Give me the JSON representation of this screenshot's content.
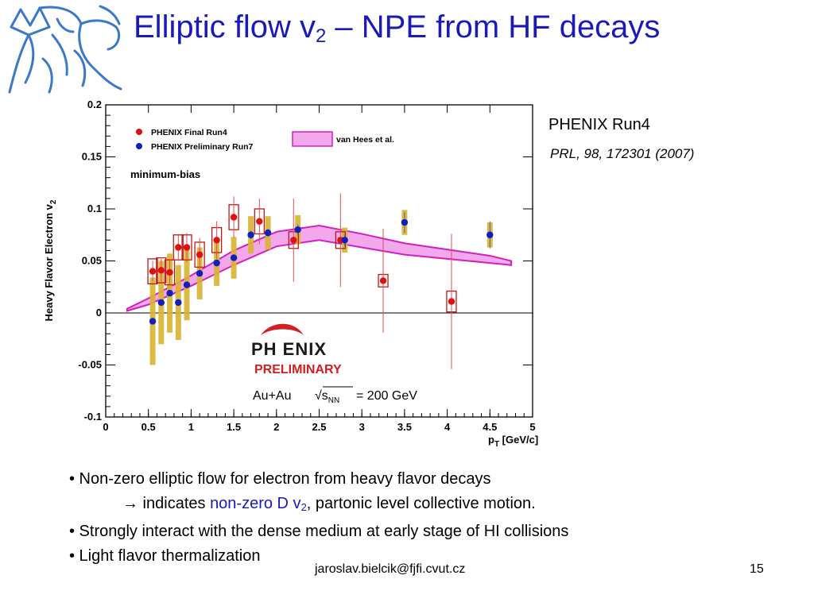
{
  "slide": {
    "title": {
      "main": "Elliptic flow v",
      "sub": "2",
      "rest": " – NPE from HF decays"
    },
    "reference": {
      "experiment": "PHENIX Run4",
      "citation": "PRL, 98, 172301 (2007)"
    },
    "bullets": [
      {
        "text": "• Non-zero elliptic flow for electron from heavy flavor decays"
      },
      {
        "prefix": "→ indicates ",
        "highlight": "non-zero D v",
        "highlight_sub": "2",
        "suffix": ", partonic level collective motion."
      },
      {
        "text": "• Strongly interact with the dense medium at early stage of HI collisions"
      },
      {
        "text": "• Light flavor thermalization"
      }
    ],
    "footer": {
      "email": "jaroslav.bielcik@fjfi.cvut.cz",
      "page": "15"
    }
  },
  "colors": {
    "title": "#1a1ab8",
    "final_marker": "#e01010",
    "prelim_marker": "#1020c0",
    "band": "#f4a8ec",
    "band_edge": "#d020c0",
    "syst": "#d8b430"
  },
  "chart_data": {
    "type": "scatter",
    "xlabel": "p",
    "xlabel_sub": "T",
    "xlabel_unit": " [GeV/c]",
    "ylabel": "Heavy Flavor Electron v",
    "ylabel_sub": "2",
    "xlim": [
      0,
      5
    ],
    "ylim": [
      -0.1,
      0.2
    ],
    "xticks": [
      "0",
      "0.5",
      "1",
      "1.5",
      "2",
      "2.5",
      "3",
      "3.5",
      "4",
      "4.5",
      "5"
    ],
    "yticks": [
      "-0.1",
      "-0.05",
      "0",
      "0.05",
      "0.1",
      "0.15",
      "0.2"
    ],
    "grid": false,
    "legend_position": "top-left",
    "annotations": {
      "centrality": "minimum-bias",
      "logo_word": "PH ENIX",
      "logo_status": "PRELIMINARY",
      "system": "Au+Au",
      "energy": "= 200 GeV"
    },
    "series": [
      {
        "name": "PHENIX Final Run4",
        "x": [
          0.55,
          0.65,
          0.75,
          0.85,
          0.95,
          1.1,
          1.3,
          1.5,
          1.8,
          2.2,
          2.75,
          3.25,
          4.05
        ],
        "y": [
          0.04,
          0.041,
          0.039,
          0.063,
          0.063,
          0.056,
          0.07,
          0.092,
          0.088,
          0.07,
          0.07,
          0.031,
          0.011
        ],
        "err": [
          0.01,
          0.011,
          0.012,
          0.013,
          0.014,
          0.016,
          0.018,
          0.02,
          0.022,
          0.04,
          0.045,
          0.05,
          0.065
        ],
        "syst": [
          0.012,
          0.012,
          0.012,
          0.012,
          0.012,
          0.012,
          0.012,
          0.012,
          0.012,
          0.008,
          0.008,
          0.006,
          0.01
        ]
      },
      {
        "name": "PHENIX Preliminary Run7",
        "x": [
          0.55,
          0.65,
          0.75,
          0.85,
          0.95,
          1.1,
          1.3,
          1.5,
          1.7,
          1.9,
          2.25,
          2.8,
          3.5,
          4.5
        ],
        "y": [
          -0.008,
          0.01,
          0.019,
          0.01,
          0.027,
          0.038,
          0.048,
          0.053,
          0.075,
          0.077,
          0.08,
          0.07,
          0.087,
          0.075
        ],
        "err": [
          0.003,
          0.003,
          0.003,
          0.003,
          0.003,
          0.003,
          0.003,
          0.003,
          0.004,
          0.004,
          0.005,
          0.006,
          0.01,
          0.013
        ],
        "syst": [
          0.042,
          0.04,
          0.038,
          0.036,
          0.034,
          0.025,
          0.022,
          0.02,
          0.018,
          0.016,
          0.014,
          0.012,
          0.012,
          0.012
        ]
      }
    ],
    "band": {
      "name": "van Hees et al.",
      "x": [
        0.25,
        0.5,
        1.0,
        1.5,
        2.0,
        2.5,
        3.0,
        3.5,
        4.0,
        4.5,
        4.75
      ],
      "upper": [
        0.004,
        0.014,
        0.036,
        0.06,
        0.078,
        0.084,
        0.076,
        0.067,
        0.061,
        0.055,
        0.05
      ],
      "lower": [
        0.002,
        0.008,
        0.026,
        0.046,
        0.064,
        0.07,
        0.063,
        0.056,
        0.052,
        0.048,
        0.046
      ]
    }
  }
}
